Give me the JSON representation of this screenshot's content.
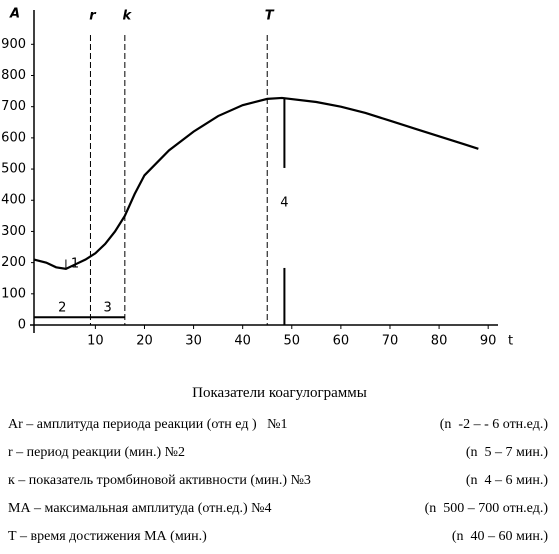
{
  "chart_data": {
    "type": "line",
    "y_label": "A",
    "x_label": "t",
    "xlim": [
      -2.5,
      92
    ],
    "ylim": [
      0,
      1010
    ],
    "xticks": [
      10,
      20,
      30,
      40,
      50,
      60,
      70,
      80,
      90
    ],
    "yticks": [
      0,
      100,
      200,
      300,
      400,
      500,
      600,
      700,
      800,
      900
    ],
    "color": "#000000",
    "x": [
      -2.5,
      0,
      2,
      4,
      6,
      8,
      10,
      12,
      14,
      16,
      18,
      20,
      25,
      30,
      35,
      40,
      45,
      48,
      55,
      60,
      65,
      70,
      75,
      80,
      85,
      88
    ],
    "values": [
      210,
      200,
      185,
      180,
      195,
      210,
      230,
      260,
      300,
      350,
      420,
      480,
      560,
      620,
      670,
      705,
      725,
      728,
      715,
      700,
      680,
      655,
      630,
      605,
      580,
      565
    ],
    "markers": [
      {
        "label": "r",
        "x": 9
      },
      {
        "label": "k",
        "x": 16
      },
      {
        "label": "T",
        "x": 45
      }
    ],
    "amplitude": {
      "label": "4",
      "x": 48.5,
      "value": 728
    },
    "small_amplitude": {
      "label": "1",
      "x": 4,
      "from": 180,
      "to": 210
    },
    "segments": [
      {
        "label": "2",
        "from": -2.5,
        "to": 9
      },
      {
        "label": "3",
        "from": 9,
        "to": 16
      }
    ],
    "segment_level": 25
  },
  "legend_table": {
    "title": "Показатели коагулограммы",
    "rows": [
      [
        "Ar – амплитуда периода реакции (отн ед )   №1",
        "(n  -2 – - 6 отн.ед.)"
      ],
      [
        "r – период реакции (мин.) №2",
        "(n  5 – 7 мин.)"
      ],
      [
        "к – показатель тромбиновой активности (мин.) №3",
        "(n  4 – 6 мин.)"
      ],
      [
        "МА – максимальная амплитуда (отн.ед.) №4",
        "(n  500 – 700 отн.ед.)"
      ],
      [
        "Т – время достижения МА (мин.)",
        "(n  40 – 60 мин.)"
      ]
    ]
  }
}
